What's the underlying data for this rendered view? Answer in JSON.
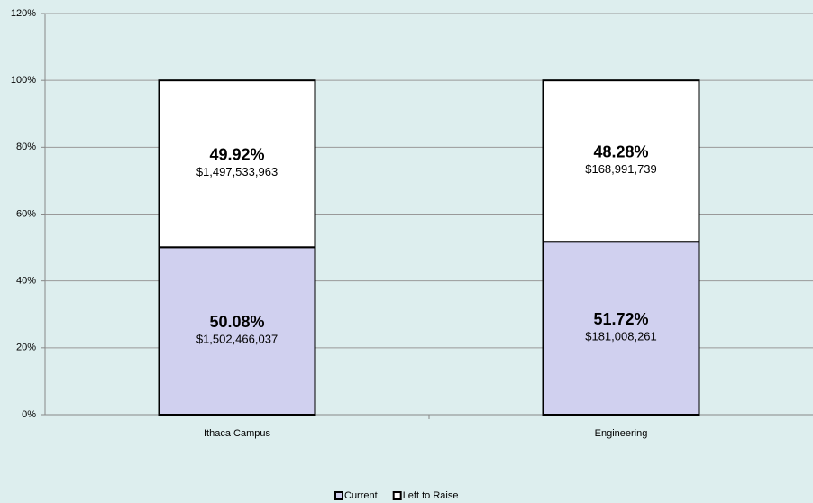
{
  "chart_data": {
    "type": "stacked_bar",
    "categories": [
      "Ithaca Campus",
      "Engineering"
    ],
    "series": [
      {
        "name": "Current",
        "color": "#d0d0ef",
        "values": [
          50.08,
          51.72
        ],
        "value_labels": [
          "50.08%",
          "51.72%"
        ],
        "amount_labels": [
          "$1,502,466,037",
          "$181,008,261"
        ]
      },
      {
        "name": "Left to Raise",
        "color": "#ffffff",
        "values": [
          49.92,
          48.28
        ],
        "value_labels": [
          "49.92%",
          "48.28%"
        ],
        "amount_labels": [
          "$1,497,533,963",
          "$168,991,739"
        ]
      }
    ],
    "ylim": [
      0,
      120
    ],
    "yticks": [
      {
        "value": 0,
        "label": "0%"
      },
      {
        "value": 20,
        "label": "20%"
      },
      {
        "value": 40,
        "label": "40%"
      },
      {
        "value": 60,
        "label": "60%"
      },
      {
        "value": 80,
        "label": "80%"
      },
      {
        "value": 100,
        "label": "100%"
      },
      {
        "value": 120,
        "label": "120%"
      }
    ],
    "grid": true,
    "legend": "bottom"
  }
}
